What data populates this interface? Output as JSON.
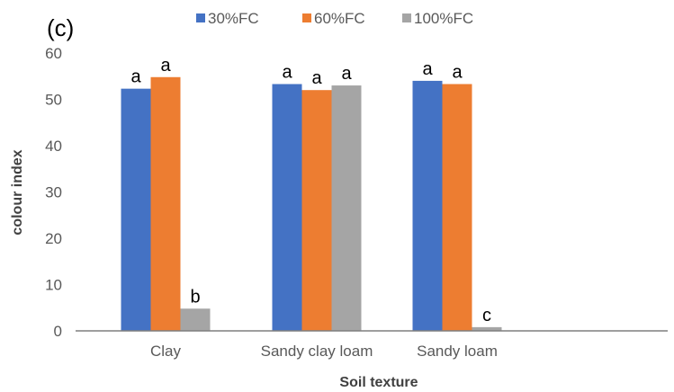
{
  "panel_label": "(c)",
  "chart_data": {
    "type": "bar",
    "title": "",
    "xlabel": "Soil texture",
    "ylabel": "colour index",
    "ylim": [
      0,
      60
    ],
    "yticks": [
      0,
      10,
      20,
      30,
      40,
      50,
      60
    ],
    "grid": false,
    "legend_position": "top",
    "categories": [
      "Clay",
      "Sandy clay loam",
      "Sandy loam"
    ],
    "series": [
      {
        "name": "30%FC",
        "color": "#4472C4",
        "values": [
          52.3,
          53.3,
          54.0
        ],
        "labels": [
          "a",
          "a",
          "a"
        ]
      },
      {
        "name": "60%FC",
        "color": "#ED7D31",
        "values": [
          54.8,
          52.0,
          53.3
        ],
        "labels": [
          "a",
          "a",
          "a"
        ]
      },
      {
        "name": "100%FC",
        "color": "#A5A5A5",
        "values": [
          4.8,
          53.0,
          0.8
        ],
        "labels": [
          "b",
          "a",
          "c"
        ]
      }
    ]
  }
}
